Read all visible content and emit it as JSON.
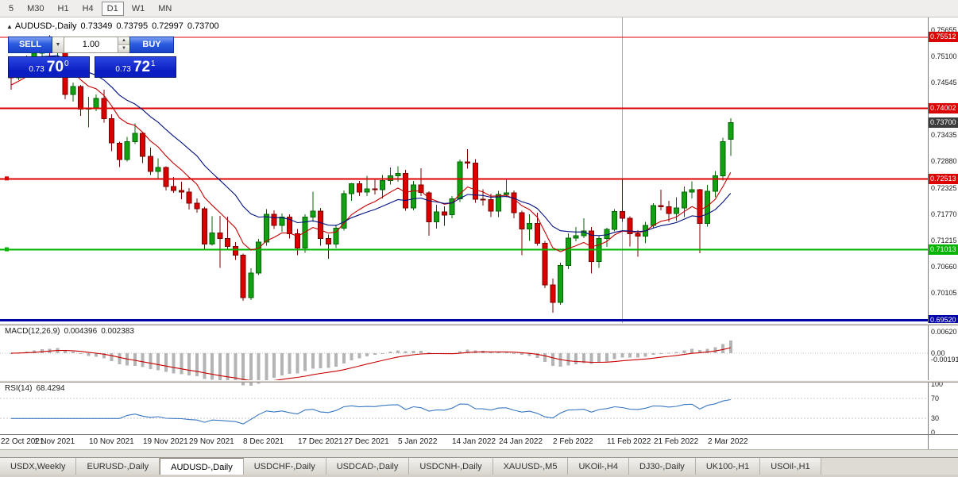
{
  "toolbar": {
    "timeframes": [
      "5",
      "M30",
      "H1",
      "H4",
      "D1",
      "W1",
      "MN"
    ],
    "selected_timeframe": "D1"
  },
  "chart_header": {
    "collapse_icon": "▲",
    "symbol": "AUDUSD-,Daily",
    "open": "0.73349",
    "high": "0.73795",
    "low": "0.72997",
    "close": "0.73700"
  },
  "trade_panel": {
    "sell_label": "SELL",
    "buy_label": "BUY",
    "volume": "1.00",
    "bid": {
      "prefix": "0.73",
      "big": "70",
      "sup": "0"
    },
    "ask": {
      "prefix": "0.73",
      "big": "72",
      "sup": "1"
    }
  },
  "indicators": {
    "macd_label": "MACD(12,26,9)",
    "macd_value_main": "0.004396",
    "macd_value_signal": "0.002383",
    "rsi_label": "RSI(14)",
    "rsi_value": "68.4294"
  },
  "colors": {
    "up": "#12a112",
    "up_border": "#046404",
    "down": "#d90000",
    "down_border": "#7a0000",
    "ma_fast": "#c80000",
    "ma_slow": "#001080",
    "macd_hist": "#b4b4b4",
    "macd_signal": "#c80000",
    "rsi_line": "#3a78c2",
    "badge_current": "#3c3c3c"
  },
  "chart_data": {
    "type": "candlestick",
    "title": "AUDUSD-,Daily",
    "y_range": {
      "top": 0.7593,
      "bottom": 0.6946
    },
    "price_ticks": [
      0.75655,
      0.751,
      0.74545,
      0.73435,
      0.7288,
      0.72325,
      0.7177,
      0.71215,
      0.7066,
      0.70105
    ],
    "current_price": {
      "value": 0.737,
      "label": "0.73700"
    },
    "levels": [
      {
        "price": 0.75512,
        "label": "0.75512",
        "color": "#dd0000",
        "width": 1,
        "marker": false
      },
      {
        "price": 0.74002,
        "label": "0.74002",
        "color": "#dd0000",
        "width": 2,
        "marker": false
      },
      {
        "price": 0.72513,
        "label": "0.72513",
        "color": "#dd0000",
        "width": 2,
        "marker": true
      },
      {
        "price": 0.71013,
        "label": "0.71013",
        "color": "#00b400",
        "width": 2,
        "marker": true
      },
      {
        "price": 0.6952,
        "label": "0.69520",
        "color": "#0000a8",
        "width": 3,
        "marker": false
      }
    ],
    "vline_index": 79,
    "date_labels": [
      {
        "label": "22 Oct 2021",
        "index": 0
      },
      {
        "label": "1 Nov 2021",
        "index": 6
      },
      {
        "label": "10 Nov 2021",
        "index": 13
      },
      {
        "label": "19 Nov 2021",
        "index": 20
      },
      {
        "label": "29 Nov 2021",
        "index": 26
      },
      {
        "label": "8 Dec 2021",
        "index": 33
      },
      {
        "label": "17 Dec 2021",
        "index": 40
      },
      {
        "label": "27 Dec 2021",
        "index": 46
      },
      {
        "label": "5 Jan 2022",
        "index": 53
      },
      {
        "label": "14 Jan 2022",
        "index": 60
      },
      {
        "label": "24 Jan 2022",
        "index": 66
      },
      {
        "label": "2 Feb 2022",
        "index": 73
      },
      {
        "label": "11 Feb 2022",
        "index": 80
      },
      {
        "label": "21 Feb 2022",
        "index": 86
      },
      {
        "label": "2 Mar 2022",
        "index": 93
      }
    ],
    "macd": {
      "ticks": [
        {
          "value": 0.0062,
          "label": "0.00620"
        },
        {
          "value": 0.0,
          "label": "0.00"
        },
        {
          "value": -0.00191,
          "label": "-0.00191"
        }
      ],
      "y_range": {
        "top": 0.008,
        "bottom": -0.0078
      }
    },
    "rsi": {
      "ticks": [
        100,
        70,
        30,
        0
      ],
      "levels": [
        70,
        30
      ],
      "y_range": {
        "top": 103,
        "bottom": -3
      }
    },
    "candles": [
      [
        0.747,
        0.7478,
        0.744,
        0.7465
      ],
      [
        0.7465,
        0.7492,
        0.746,
        0.7488
      ],
      [
        0.7488,
        0.7512,
        0.748,
        0.75
      ],
      [
        0.75,
        0.7525,
        0.749,
        0.7517
      ],
      [
        0.7517,
        0.7547,
        0.751,
        0.7539
      ],
      [
        0.7539,
        0.7555,
        0.75,
        0.7518
      ],
      [
        0.7518,
        0.7535,
        0.75,
        0.7525
      ],
      [
        0.7525,
        0.7528,
        0.742,
        0.743
      ],
      [
        0.743,
        0.7455,
        0.7415,
        0.7447
      ],
      [
        0.7447,
        0.745,
        0.7385,
        0.7399
      ],
      [
        0.7399,
        0.7425,
        0.736,
        0.7401
      ],
      [
        0.7401,
        0.743,
        0.7395,
        0.7422
      ],
      [
        0.7422,
        0.744,
        0.737,
        0.7379
      ],
      [
        0.7379,
        0.7388,
        0.731,
        0.7327
      ],
      [
        0.7327,
        0.733,
        0.7276,
        0.7292
      ],
      [
        0.7292,
        0.734,
        0.7288,
        0.733
      ],
      [
        0.733,
        0.7369,
        0.7325,
        0.7348
      ],
      [
        0.7348,
        0.735,
        0.7285,
        0.7299
      ],
      [
        0.7299,
        0.7317,
        0.7259,
        0.7267
      ],
      [
        0.7267,
        0.7295,
        0.725,
        0.7275
      ],
      [
        0.7275,
        0.7278,
        0.7227,
        0.7235
      ],
      [
        0.7235,
        0.7255,
        0.7222,
        0.7227
      ],
      [
        0.7227,
        0.7245,
        0.7208,
        0.7223
      ],
      [
        0.7223,
        0.7232,
        0.7186,
        0.72
      ],
      [
        0.72,
        0.721,
        0.718,
        0.7188
      ],
      [
        0.7188,
        0.7192,
        0.71,
        0.7113
      ],
      [
        0.7113,
        0.7172,
        0.711,
        0.7137
      ],
      [
        0.7137,
        0.7173,
        0.7063,
        0.7125
      ],
      [
        0.7125,
        0.7171,
        0.71,
        0.7108
      ],
      [
        0.7108,
        0.7117,
        0.708,
        0.709
      ],
      [
        0.709,
        0.7093,
        0.6993,
        0.7
      ],
      [
        0.7,
        0.7062,
        0.6995,
        0.7052
      ],
      [
        0.7052,
        0.7124,
        0.7048,
        0.7117
      ],
      [
        0.7117,
        0.7187,
        0.711,
        0.7176
      ],
      [
        0.7176,
        0.7185,
        0.7145,
        0.7153
      ],
      [
        0.7153,
        0.7178,
        0.7139,
        0.717
      ],
      [
        0.717,
        0.7176,
        0.7125,
        0.7135
      ],
      [
        0.7135,
        0.7145,
        0.709,
        0.7105
      ],
      [
        0.7105,
        0.7176,
        0.7095,
        0.717
      ],
      [
        0.717,
        0.7224,
        0.716,
        0.7183
      ],
      [
        0.7183,
        0.719,
        0.711,
        0.7125
      ],
      [
        0.7125,
        0.7133,
        0.7082,
        0.7113
      ],
      [
        0.7113,
        0.7154,
        0.7105,
        0.7147
      ],
      [
        0.7147,
        0.7227,
        0.7142,
        0.722
      ],
      [
        0.722,
        0.7243,
        0.7205,
        0.7241
      ],
      [
        0.7241,
        0.7247,
        0.7215,
        0.7223
      ],
      [
        0.7223,
        0.7258,
        0.7215,
        0.723
      ],
      [
        0.723,
        0.725,
        0.7218,
        0.7228
      ],
      [
        0.7228,
        0.7259,
        0.721,
        0.7248
      ],
      [
        0.7248,
        0.7275,
        0.7239,
        0.7258
      ],
      [
        0.7258,
        0.7278,
        0.7245,
        0.7263
      ],
      [
        0.7263,
        0.727,
        0.7184,
        0.719
      ],
      [
        0.719,
        0.7247,
        0.7185,
        0.7238
      ],
      [
        0.7238,
        0.7274,
        0.7215,
        0.7222
      ],
      [
        0.7222,
        0.7225,
        0.7131,
        0.716
      ],
      [
        0.716,
        0.7196,
        0.7146,
        0.7181
      ],
      [
        0.7181,
        0.7193,
        0.7152,
        0.7175
      ],
      [
        0.7175,
        0.7215,
        0.7168,
        0.7209
      ],
      [
        0.7209,
        0.7292,
        0.7202,
        0.7287
      ],
      [
        0.7287,
        0.7314,
        0.7273,
        0.7285
      ],
      [
        0.7285,
        0.7293,
        0.7201,
        0.7208
      ],
      [
        0.7208,
        0.7229,
        0.7195,
        0.7207
      ],
      [
        0.7207,
        0.722,
        0.717,
        0.7183
      ],
      [
        0.7183,
        0.7226,
        0.717,
        0.7218
      ],
      [
        0.7218,
        0.725,
        0.7212,
        0.7222
      ],
      [
        0.7222,
        0.7227,
        0.7168,
        0.718
      ],
      [
        0.718,
        0.7184,
        0.709,
        0.7145
      ],
      [
        0.7145,
        0.7176,
        0.712,
        0.7157
      ],
      [
        0.7157,
        0.718,
        0.711,
        0.7115
      ],
      [
        0.7115,
        0.712,
        0.702,
        0.7027
      ],
      [
        0.7027,
        0.704,
        0.6968,
        0.699
      ],
      [
        0.699,
        0.7074,
        0.6985,
        0.7068
      ],
      [
        0.7068,
        0.7136,
        0.706,
        0.7126
      ],
      [
        0.7126,
        0.7149,
        0.7119,
        0.7131
      ],
      [
        0.7131,
        0.7168,
        0.7126,
        0.7141
      ],
      [
        0.7141,
        0.7149,
        0.7051,
        0.7076
      ],
      [
        0.7076,
        0.7131,
        0.7063,
        0.7125
      ],
      [
        0.7125,
        0.7148,
        0.7107,
        0.7144
      ],
      [
        0.7144,
        0.7187,
        0.714,
        0.7182
      ],
      [
        0.7182,
        0.7249,
        0.716,
        0.7168
      ],
      [
        0.7168,
        0.7172,
        0.7108,
        0.7135
      ],
      [
        0.7135,
        0.7143,
        0.7086,
        0.713
      ],
      [
        0.713,
        0.716,
        0.7115,
        0.7153
      ],
      [
        0.7153,
        0.72,
        0.7147,
        0.7195
      ],
      [
        0.7195,
        0.7228,
        0.7185,
        0.7192
      ],
      [
        0.7192,
        0.7205,
        0.716,
        0.7178
      ],
      [
        0.7178,
        0.7212,
        0.7162,
        0.719
      ],
      [
        0.719,
        0.7235,
        0.717,
        0.7223
      ],
      [
        0.7223,
        0.7246,
        0.721,
        0.7228
      ],
      [
        0.7228,
        0.723,
        0.7094,
        0.7157
      ],
      [
        0.7157,
        0.7238,
        0.715,
        0.7225
      ],
      [
        0.7225,
        0.7268,
        0.7212,
        0.7258
      ],
      [
        0.7258,
        0.7338,
        0.7248,
        0.733
      ],
      [
        0.73349,
        0.73795,
        0.72997,
        0.737
      ]
    ]
  },
  "tabs": {
    "items": [
      "USDX,Weekly",
      "EURUSD-,Daily",
      "AUDUSD-,Daily",
      "USDCHF-,Daily",
      "USDCAD-,Daily",
      "USDCNH-,Daily",
      "XAUUSD-,M5",
      "UKOil-,H4",
      "DJ30-,Daily",
      "UK100-,H1",
      "USOil-,H1"
    ],
    "active": "AUDUSD-,Daily"
  }
}
